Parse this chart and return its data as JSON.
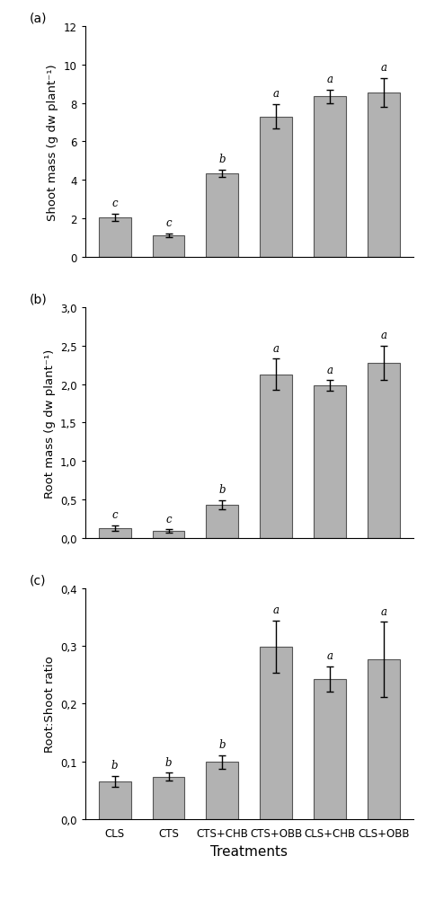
{
  "categories": [
    "CLS",
    "CTS",
    "CTS+CHB",
    "CTS+OBB",
    "CLS+CHB",
    "CLS+OBB"
  ],
  "panel_a": {
    "label": "(a)",
    "ylabel": "Shoot mass (g dw plant⁻¹)",
    "values": [
      2.05,
      1.1,
      4.35,
      7.3,
      8.35,
      8.55
    ],
    "errors": [
      0.18,
      0.1,
      0.18,
      0.65,
      0.35,
      0.75
    ],
    "sig_labels": [
      "c",
      "c",
      "b",
      "a",
      "a",
      "a"
    ],
    "ylim": [
      0,
      12
    ],
    "yticks": [
      0,
      2,
      4,
      6,
      8,
      10,
      12
    ],
    "ytick_labels": [
      "0",
      "2",
      "4",
      "6",
      "8",
      "10",
      "12"
    ]
  },
  "panel_b": {
    "label": "(b)",
    "ylabel": "Root mass (g dw plant⁻¹)",
    "values": [
      0.13,
      0.09,
      0.43,
      2.13,
      1.98,
      2.28
    ],
    "errors": [
      0.035,
      0.02,
      0.06,
      0.2,
      0.07,
      0.22
    ],
    "sig_labels": [
      "c",
      "c",
      "b",
      "a",
      "a",
      "a"
    ],
    "ylim": [
      0,
      3.0
    ],
    "yticks": [
      0.0,
      0.5,
      1.0,
      1.5,
      2.0,
      2.5,
      3.0
    ],
    "ytick_labels": [
      "0,0",
      "0,5",
      "1,0",
      "1,5",
      "2,0",
      "2,5",
      "3,0"
    ]
  },
  "panel_c": {
    "label": "(c)",
    "ylabel": "Root:Shoot ratio",
    "xlabel": "Treatments",
    "values": [
      0.065,
      0.073,
      0.099,
      0.299,
      0.243,
      0.277
    ],
    "errors": [
      0.01,
      0.007,
      0.012,
      0.045,
      0.022,
      0.065
    ],
    "sig_labels": [
      "b",
      "b",
      "b",
      "a",
      "a",
      "a"
    ],
    "ylim": [
      0,
      0.4
    ],
    "yticks": [
      0.0,
      0.1,
      0.2,
      0.3,
      0.4
    ],
    "ytick_labels": [
      "0,0",
      "0,1",
      "0,2",
      "0,3",
      "0,4"
    ]
  },
  "bar_color": "#b2b2b2",
  "bar_edgecolor": "#555555",
  "bar_width": 0.6,
  "error_capsize": 3,
  "error_color": "black",
  "error_linewidth": 1.0,
  "sig_fontsize": 8.5,
  "label_fontsize": 10,
  "tick_fontsize": 8.5,
  "ylabel_fontsize": 9.5,
  "xlabel_fontsize": 11
}
